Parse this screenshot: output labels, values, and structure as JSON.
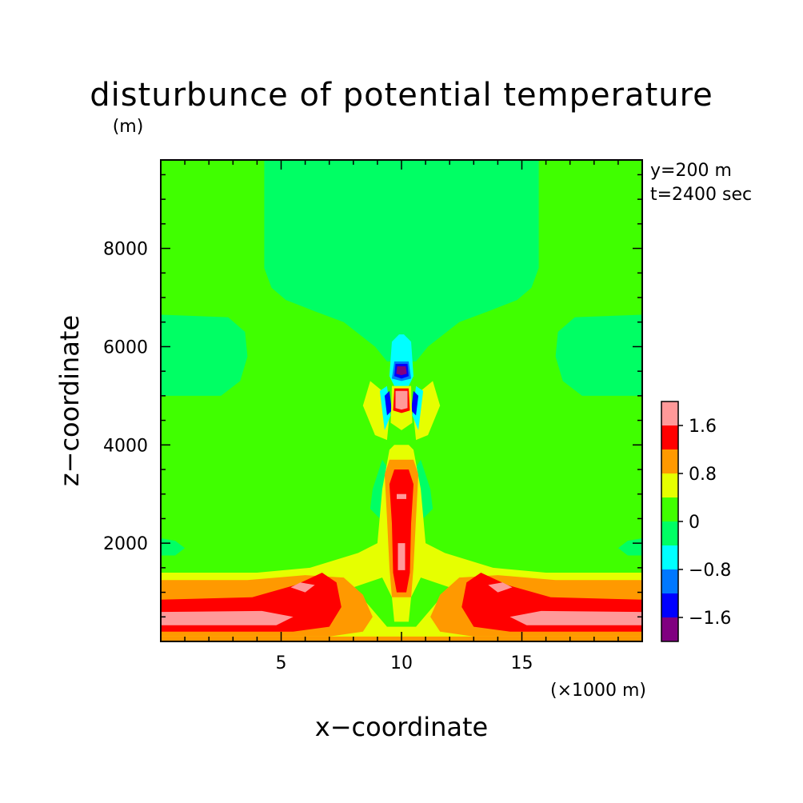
{
  "chart_data": {
    "type": "heatmap",
    "title": "disturbunce of potential temperature",
    "y_unit_label": "(m)",
    "x_unit_label": "(×1000 m)",
    "xlabel": "x−coordinate",
    "ylabel": "z−coordinate",
    "annotations": [
      "y=200 m",
      "t=2400 sec"
    ],
    "xlim": [
      0,
      20
    ],
    "ylim": [
      0,
      9800
    ],
    "x_ticks": [
      5,
      10,
      15
    ],
    "y_ticks": [
      2000,
      4000,
      6000,
      8000
    ],
    "grid": false,
    "colorbar": {
      "placement": "right",
      "levels": [
        -2.0,
        -1.6,
        -1.2,
        -0.8,
        -0.4,
        0,
        0.4,
        0.8,
        1.2,
        1.6,
        2.0
      ],
      "colors": [
        "#800080",
        "#0000ff",
        "#0078ff",
        "#00ffff",
        "#00ff64",
        "#40ff00",
        "#e6ff00",
        "#ff9900",
        "#ff0000",
        "#ff9999"
      ],
      "tick_labels": [
        "−1.6",
        "−0.8",
        "0",
        "0.8",
        "1.6"
      ],
      "tick_values": [
        -1.6,
        -0.8,
        0,
        0.8,
        1.6
      ]
    },
    "regions": [
      {
        "level": "0.4 to 0.8",
        "desc": "background field",
        "x": [
          0,
          20
        ],
        "z": [
          0,
          9800
        ]
      },
      {
        "level": "-0.4 to 0",
        "desc": "upper central plume",
        "x_range": [
          4.3,
          15.7
        ],
        "z_range": [
          6000,
          9800
        ]
      },
      {
        "level": "-0.4 to 0",
        "desc": "left lobe",
        "x_range": [
          0,
          3.6
        ],
        "z_range": [
          5000,
          6650
        ]
      },
      {
        "level": "-0.4 to 0",
        "desc": "right lobe",
        "x_range": [
          16.4,
          20
        ],
        "z_range": [
          5000,
          6650
        ]
      },
      {
        "level": "1.6 to 2.0",
        "desc": "central column max",
        "x": 10.0,
        "z": 2500
      },
      {
        "level": "1.6 to 2.0",
        "desc": "central core",
        "x": 10.0,
        "z": 4950
      },
      {
        "level": "-2.0 to -1.6",
        "desc": "central cold core",
        "x": 10.0,
        "z": 5550
      },
      {
        "level": "1.6 to 2.0",
        "desc": "low-level band",
        "x_range": [
          0,
          6
        ],
        "z_range": [
          300,
          550
        ]
      },
      {
        "level": "1.6 to 2.0",
        "desc": "low-level band",
        "x_range": [
          14,
          20
        ],
        "z_range": [
          300,
          550
        ]
      }
    ]
  }
}
